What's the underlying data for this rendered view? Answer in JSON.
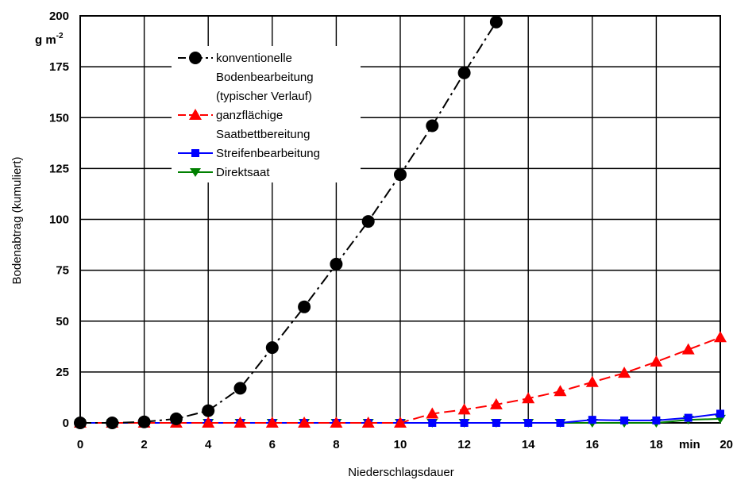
{
  "chart_data": {
    "type": "line",
    "title": "",
    "xlabel": "Niederschlagsdauer",
    "ylabel": "Bodenabtrag (kumuliert)",
    "y_unit": "g m",
    "y_unit_exponent": "-2",
    "x_unit": "min",
    "xlim": [
      0,
      20
    ],
    "ylim": [
      0,
      200
    ],
    "x_ticks": [
      0,
      2,
      4,
      6,
      8,
      10,
      12,
      14,
      16,
      18,
      20
    ],
    "y_ticks": [
      0,
      25,
      50,
      75,
      100,
      125,
      150,
      175,
      200
    ],
    "grid": true,
    "legend_position": "top-left",
    "series": [
      {
        "name_lines": [
          "konventionelle",
          "Bodenbearbeitung",
          "(typischer Verlauf)"
        ],
        "color": "#000000",
        "marker": "circle",
        "dash": "dash-dot",
        "x": [
          0,
          1,
          2,
          3,
          4,
          5,
          6,
          7,
          8,
          9,
          10,
          11,
          12,
          13
        ],
        "y": [
          0,
          0,
          0.5,
          2,
          6,
          17,
          37,
          57,
          78,
          99,
          122,
          146,
          172,
          197
        ]
      },
      {
        "name_lines": [
          "ganzflächige",
          "Saatbettbereitung"
        ],
        "color": "#ff0000",
        "marker": "triangle-up",
        "dash": "dashed",
        "x": [
          0,
          1,
          2,
          3,
          4,
          5,
          6,
          7,
          8,
          9,
          10,
          11,
          12,
          13,
          14,
          15,
          16,
          17,
          18,
          19,
          20
        ],
        "y": [
          0,
          0,
          0,
          0,
          0,
          0,
          0,
          0,
          0,
          0,
          0,
          4.5,
          6.5,
          9,
          12,
          15.5,
          20,
          24.5,
          30,
          36,
          42
        ]
      },
      {
        "name_lines": [
          "Streifenbearbeitung"
        ],
        "color": "#0000ff",
        "marker": "square",
        "dash": "solid",
        "x": [
          0,
          1,
          2,
          3,
          4,
          5,
          6,
          7,
          8,
          9,
          10,
          11,
          12,
          13,
          14,
          15,
          16,
          17,
          18,
          19,
          20
        ],
        "y": [
          0,
          0,
          0,
          0,
          0,
          0,
          0,
          0,
          0,
          0,
          0,
          0,
          0,
          0,
          0,
          0,
          1.5,
          1.2,
          1.2,
          2.5,
          4.5
        ]
      },
      {
        "name_lines": [
          "Direktsaat"
        ],
        "color": "#008000",
        "marker": "triangle-down",
        "dash": "solid",
        "x": [
          0,
          1,
          2,
          3,
          4,
          5,
          6,
          7,
          8,
          9,
          10,
          11,
          12,
          13,
          14,
          15,
          16,
          17,
          18,
          19,
          20
        ],
        "y": [
          0,
          0,
          0,
          0,
          0,
          0,
          0,
          0,
          0,
          0,
          0,
          0,
          0,
          0,
          0,
          0,
          0,
          0,
          0,
          1.5,
          2
        ]
      }
    ]
  }
}
